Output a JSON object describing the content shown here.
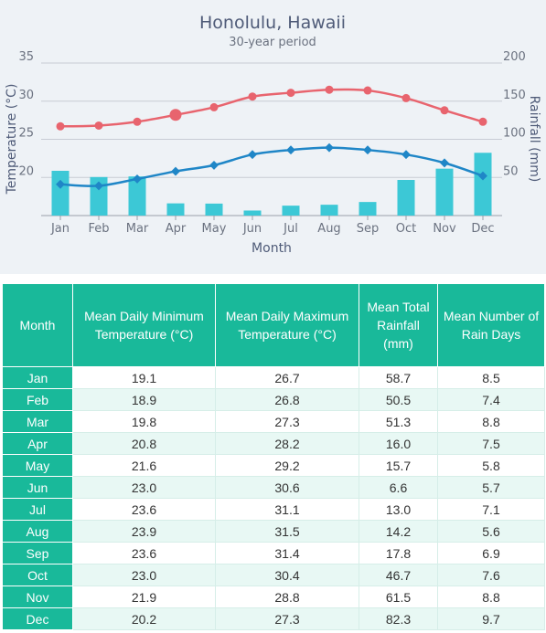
{
  "chart_data": {
    "type": "bar+line",
    "title": "Honolulu, Hawaii",
    "subtitle": "30-year period",
    "xlabel": "Month",
    "ylabel_left": "Temperature (°C)",
    "ylabel_right": "Rainfall (mm)",
    "categories": [
      "Jan",
      "Feb",
      "Mar",
      "Apr",
      "May",
      "Jun",
      "Jul",
      "Aug",
      "Sep",
      "Oct",
      "Nov",
      "Dec"
    ],
    "y_left_ticks": [
      20,
      25,
      30,
      35
    ],
    "y_right_ticks": [
      50,
      100,
      150,
      200
    ],
    "ylim_left": [
      15,
      35
    ],
    "ylim_right": [
      0,
      200
    ],
    "grid": true,
    "series": [
      {
        "name": "Mean Daily Maximum Temperature (°C)",
        "type": "line",
        "axis": "left",
        "color": "#e8646e",
        "values": [
          26.7,
          26.8,
          27.3,
          28.2,
          29.2,
          30.6,
          31.1,
          31.5,
          31.4,
          30.4,
          28.8,
          27.3
        ]
      },
      {
        "name": "Mean Daily Minimum Temperature (°C)",
        "type": "line",
        "axis": "left",
        "color": "#1f86c7",
        "values": [
          19.1,
          18.9,
          19.8,
          20.8,
          21.6,
          23.0,
          23.6,
          23.9,
          23.6,
          23.0,
          21.9,
          20.2
        ]
      },
      {
        "name": "Mean Total Rainfall (mm)",
        "type": "bar",
        "axis": "right",
        "color": "#3cc8d6",
        "values": [
          58.7,
          50.5,
          51.3,
          16.0,
          15.7,
          6.6,
          13.0,
          14.2,
          17.8,
          46.7,
          61.5,
          82.3
        ]
      }
    ],
    "highlighted_point": {
      "series": "Mean Daily Maximum Temperature (°C)",
      "category": "Apr"
    }
  },
  "table": {
    "headers": [
      "Month",
      "Mean Daily Minimum Temperature (°C)",
      "Mean Daily Maximum Temperature (°C)",
      "Mean Total Rainfall (mm)",
      "Mean Number of Rain Days"
    ],
    "rows": [
      [
        "Jan",
        "19.1",
        "26.7",
        "58.7",
        "8.5"
      ],
      [
        "Feb",
        "18.9",
        "26.8",
        "50.5",
        "7.4"
      ],
      [
        "Mar",
        "19.8",
        "27.3",
        "51.3",
        "8.8"
      ],
      [
        "Apr",
        "20.8",
        "28.2",
        "16.0",
        "7.5"
      ],
      [
        "May",
        "21.6",
        "29.2",
        "15.7",
        "5.8"
      ],
      [
        "Jun",
        "23.0",
        "30.6",
        "6.6",
        "5.7"
      ],
      [
        "Jul",
        "23.6",
        "31.1",
        "13.0",
        "7.1"
      ],
      [
        "Aug",
        "23.9",
        "31.5",
        "14.2",
        "5.6"
      ],
      [
        "Sep",
        "23.6",
        "31.4",
        "17.8",
        "6.9"
      ],
      [
        "Oct",
        "23.0",
        "30.4",
        "46.7",
        "7.6"
      ],
      [
        "Nov",
        "21.9",
        "28.8",
        "61.5",
        "8.8"
      ],
      [
        "Dec",
        "20.2",
        "27.3",
        "82.3",
        "9.7"
      ]
    ]
  }
}
